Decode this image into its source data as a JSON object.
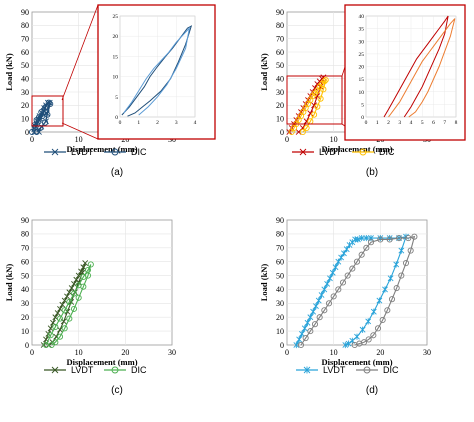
{
  "chart_data": [
    {
      "panel_label": "(a)",
      "type": "line",
      "xlabel": "Displacement (mm)",
      "ylabel": "Load (kN)",
      "xlim": [
        0,
        30
      ],
      "ylim": [
        0,
        90
      ],
      "xticks": [
        "0",
        "10",
        "20",
        "30"
      ],
      "yticks": [
        "0",
        "10",
        "20",
        "30",
        "40",
        "50",
        "60",
        "70",
        "80",
        "90"
      ],
      "series": [
        {
          "name": "LVDT",
          "color": "#1f4e79",
          "marker": "x",
          "x": [
            0.5,
            0.8,
            1.2,
            1.6,
            1.0,
            1.8,
            2.2,
            1.5,
            2.5,
            3.0,
            2.6,
            3.4,
            3.8,
            3.2,
            3.0,
            2.0,
            1.5
          ],
          "y": [
            0,
            4,
            8,
            12,
            6,
            10,
            14,
            9,
            16,
            20,
            18,
            22,
            22,
            14,
            8,
            4,
            0
          ]
        },
        {
          "name": "DIC",
          "color": "#1f4e79",
          "marker": "o",
          "x": [
            0.0,
            0.5,
            1.0,
            0.7,
            1.5,
            2.0,
            1.4,
            2.4,
            2.8,
            2.2,
            3.0,
            3.6,
            3.9,
            3.3,
            2.8,
            1.8,
            1.0
          ],
          "y": [
            0,
            5,
            9,
            4,
            11,
            15,
            8,
            14,
            18,
            12,
            19,
            22,
            21,
            13,
            7,
            3,
            0
          ]
        }
      ],
      "inset": {
        "xlim": [
          0,
          4
        ],
        "ylim": [
          0,
          25
        ],
        "xticks": [
          "0",
          "1",
          "2",
          "3",
          "4"
        ],
        "yticks": [
          "0",
          "5",
          "10",
          "15",
          "20",
          "25"
        ],
        "series": [
          {
            "name": "LVDT",
            "color": "#1f4e79",
            "x": [
              0.1,
              0.5,
              0.9,
              1.3,
              1.6,
              2.0,
              2.4,
              2.8,
              3.2,
              3.6,
              3.8,
              3.5,
              3.1,
              2.7,
              2.2,
              1.6,
              1.2,
              0.8,
              0.4
            ],
            "y": [
              0.5,
              2.5,
              5.0,
              7.5,
              10.0,
              12.5,
              14.8,
              17.0,
              19.5,
              22.0,
              22.5,
              18.0,
              13.5,
              9.5,
              6.5,
              4.0,
              2.5,
              1.0,
              0.2
            ]
          },
          {
            "name": "DIC",
            "color": "#5b9bd5",
            "x": [
              0.2,
              0.6,
              1.0,
              1.4,
              1.8,
              2.2,
              2.6,
              3.0,
              3.4,
              3.7,
              3.5,
              3.0,
              2.5,
              2.0,
              1.5,
              1.0
            ],
            "y": [
              1.0,
              3.5,
              6.5,
              9.5,
              12.0,
              14.0,
              16.0,
              18.5,
              20.5,
              22.0,
              17.0,
              12.0,
              8.0,
              5.0,
              2.5,
              0.5
            ]
          }
        ]
      }
    },
    {
      "panel_label": "(b)",
      "type": "line",
      "xlabel": "Displacement (mm)",
      "ylabel": "Load (kN)",
      "xlim": [
        0,
        30
      ],
      "ylim": [
        0,
        90
      ],
      "xticks": [
        "0",
        "10",
        "20",
        "30"
      ],
      "yticks": [
        "0",
        "10",
        "20",
        "30",
        "40",
        "50",
        "60",
        "70",
        "80",
        "90"
      ],
      "series": [
        {
          "name": "LVDT",
          "color": "#c00000",
          "marker": "x",
          "x": [
            0.5,
            1.0,
            1.5,
            2.0,
            2.5,
            3.0,
            3.5,
            4.0,
            4.5,
            5.0,
            5.5,
            6.0,
            6.5,
            7.0,
            7.5,
            7.8,
            7.2,
            6.5,
            5.8,
            5.0,
            4.2,
            3.4,
            2.5
          ],
          "y": [
            0,
            3,
            6,
            9,
            12,
            15,
            18,
            21,
            24,
            27,
            30,
            33,
            36,
            38,
            40,
            41,
            34,
            27,
            20,
            14,
            8,
            3,
            0
          ]
        },
        {
          "name": "DIC",
          "color": "#ffc000",
          "marker": "o",
          "x": [
            1.0,
            1.5,
            2.0,
            2.5,
            3.0,
            3.5,
            4.0,
            4.5,
            5.0,
            5.5,
            6.0,
            6.5,
            7.0,
            7.5,
            8.0,
            8.3,
            7.8,
            7.2,
            6.5,
            5.8,
            5.0,
            4.2,
            3.4
          ],
          "y": [
            0,
            3,
            6,
            9,
            12,
            15,
            18,
            21,
            24,
            27,
            29,
            31,
            34,
            36,
            38,
            39,
            32,
            25,
            19,
            13,
            8,
            3,
            0
          ]
        }
      ],
      "inset": {
        "xlim": [
          0,
          8
        ],
        "ylim": [
          0,
          40
        ],
        "xticks": [
          "0",
          "1",
          "2",
          "3",
          "4",
          "5",
          "6",
          "7",
          "8"
        ],
        "yticks": [
          "0",
          "5",
          "10",
          "15",
          "20",
          "25",
          "30",
          "35",
          "40"
        ],
        "series": [
          {
            "name": "LVDT",
            "color": "#c00000",
            "x": [
              1.6,
              2.0,
              2.5,
              3.0,
              3.5,
              4.0,
              4.5,
              5.0,
              5.5,
              6.0,
              6.5,
              7.0,
              7.3,
              7.0,
              6.5,
              6.0,
              5.5,
              5.0,
              4.5,
              4.0,
              3.4
            ],
            "y": [
              0,
              3,
              7,
              11,
              15,
              19,
              23,
              26,
              29,
              32,
              35,
              38,
              40,
              33,
              27,
              22,
              17,
              12,
              8,
              4,
              0
            ]
          },
          {
            "name": "DIC",
            "color": "#ed7d31",
            "x": [
              2.0,
              2.5,
              3.0,
              3.5,
              4.0,
              4.5,
              5.0,
              5.5,
              6.0,
              6.5,
              7.0,
              7.5,
              7.9,
              7.5,
              7.0,
              6.5,
              6.0,
              5.5,
              5.0,
              4.4,
              3.8
            ],
            "y": [
              0,
              3,
              6,
              10,
              14,
              18,
              22,
              25,
              28,
              31,
              34,
              37,
              39,
              32,
              26,
              20,
              15,
              10,
              6,
              2,
              0
            ]
          }
        ]
      }
    },
    {
      "panel_label": "(c)",
      "type": "line",
      "xlabel": "Displacement (mm)",
      "ylabel": "Load (kN)",
      "xlim": [
        0,
        30
      ],
      "ylim": [
        0,
        90
      ],
      "xticks": [
        "0",
        "10",
        "20",
        "30"
      ],
      "yticks": [
        "0",
        "10",
        "20",
        "30",
        "40",
        "50",
        "60",
        "70",
        "80",
        "90"
      ],
      "series": [
        {
          "name": "LVDT",
          "color": "#375623",
          "marker": "x",
          "x": [
            2.5,
            3.0,
            3.5,
            4.0,
            4.5,
            5.0,
            5.5,
            6.0,
            6.5,
            7.0,
            7.5,
            8.0,
            8.5,
            9.0,
            9.5,
            10.0,
            10.5,
            11.0,
            11.4,
            10.8,
            10.0,
            9.2,
            8.4,
            7.6,
            6.8,
            6.0,
            5.2,
            4.4,
            3.6
          ],
          "y": [
            0,
            4,
            8,
            12,
            16,
            20,
            23,
            26,
            29,
            32,
            35,
            38,
            41,
            44,
            47,
            50,
            53,
            56,
            59,
            52,
            45,
            38,
            31,
            24,
            17,
            11,
            6,
            2,
            0
          ]
        },
        {
          "name": "DIC",
          "color": "#4caf50",
          "marker": "o",
          "x": [
            3.0,
            4.0,
            5.0,
            6.0,
            7.0,
            8.0,
            9.0,
            10.0,
            11.0,
            12.0,
            12.6,
            12.0,
            11.0,
            10.0,
            9.0,
            8.0,
            7.0,
            6.0,
            5.0,
            4.2
          ],
          "y": [
            0,
            7,
            13,
            19,
            25,
            31,
            37,
            43,
            49,
            54,
            58,
            50,
            42,
            34,
            26,
            19,
            12,
            6,
            2,
            0
          ]
        }
      ]
    },
    {
      "panel_label": "(d)",
      "type": "line",
      "xlabel": "Displacement (mm)",
      "ylabel": "Load (kN)",
      "xlim": [
        0,
        30
      ],
      "ylim": [
        0,
        90
      ],
      "xticks": [
        "0",
        "10",
        "20",
        "30"
      ],
      "yticks": [
        "0",
        "10",
        "20",
        "30",
        "40",
        "50",
        "60",
        "70",
        "80",
        "90"
      ],
      "series": [
        {
          "name": "LVDT",
          "color": "#29a3d9",
          "marker": "*",
          "x": [
            2.0,
            2.6,
            3.2,
            3.8,
            4.4,
            5.0,
            5.6,
            6.2,
            6.8,
            7.4,
            8.0,
            8.6,
            9.2,
            9.8,
            10.4,
            11.0,
            11.6,
            12.2,
            12.8,
            13.4,
            14.0,
            14.6,
            15.2,
            16.0,
            17.0,
            18.0,
            20.0,
            22.0,
            24.0,
            25.5,
            24.5,
            23.4,
            22.2,
            21.0,
            19.8,
            18.6,
            17.4,
            16.2,
            15.0,
            14.0,
            13.2,
            12.5
          ],
          "y": [
            0,
            4,
            8,
            12,
            16,
            20,
            24,
            28,
            32,
            36,
            40,
            44,
            48,
            52,
            56,
            60,
            63,
            66,
            69,
            72,
            74,
            76,
            76,
            77,
            77,
            77,
            77,
            77,
            77,
            78,
            68,
            58,
            48,
            40,
            32,
            24,
            17,
            11,
            6,
            3,
            1,
            0
          ]
        },
        {
          "name": "DIC",
          "color": "#7f7f7f",
          "marker": "o",
          "x": [
            3.0,
            4.0,
            5.0,
            6.0,
            7.0,
            8.0,
            9.0,
            10.0,
            11.0,
            12.0,
            13.0,
            14.0,
            15.0,
            16.0,
            17.0,
            18.0,
            20.0,
            22.0,
            24.0,
            26.0,
            27.3,
            26.5,
            25.5,
            24.5,
            23.5,
            22.5,
            21.5,
            20.5,
            19.5,
            18.5,
            17.5,
            16.5,
            15.5,
            14.5
          ],
          "y": [
            0,
            5,
            10,
            15,
            20,
            25,
            30,
            35,
            40,
            45,
            50,
            55,
            60,
            65,
            70,
            74,
            76,
            76,
            77,
            77,
            78,
            68,
            59,
            50,
            41,
            33,
            25,
            18,
            12,
            7,
            4,
            2,
            1,
            0
          ]
        }
      ]
    }
  ]
}
